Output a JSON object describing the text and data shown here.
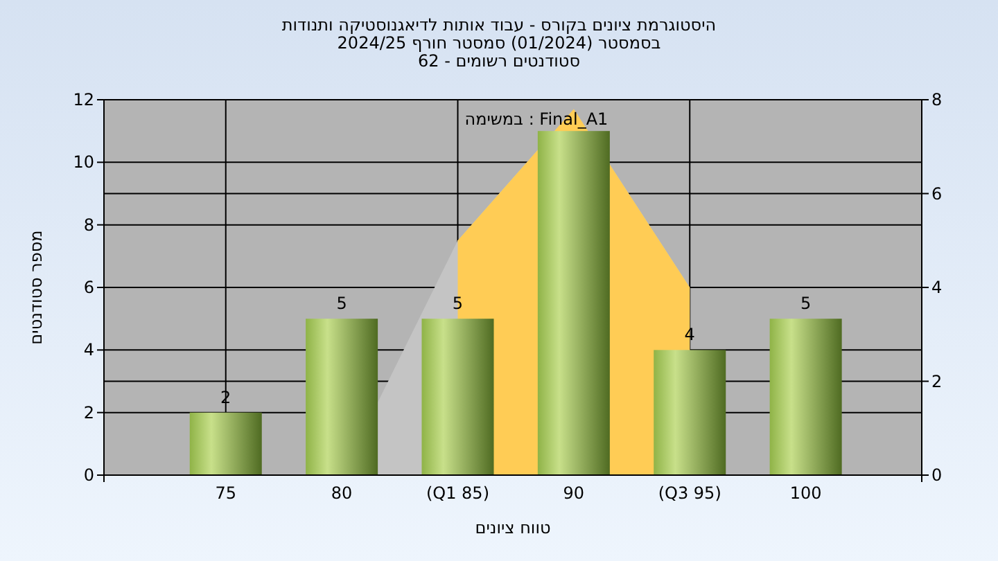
{
  "chart_data": {
    "type": "bar",
    "title": "היסטוגרמת ציונים בקורס - עבוד אותות לדיאגנוסטיקה ותנודות\nבסמסטר  (01/2024)  סמסטר חורף 2024/25",
    "subtitle": "סטודנטים רשומים - 62",
    "xlabel": "טווח ציונים",
    "ylabel": "מספר סטודנטים",
    "categories": [
      "75",
      "80",
      "(Q1 85)",
      "90",
      "(Q3 95)",
      "100"
    ],
    "series": [
      {
        "type": "area",
        "axis": "y2",
        "color": "#c4c4c4",
        "values": [
          null,
          0,
          5,
          7.8,
          4,
          null
        ]
      },
      {
        "type": "area",
        "axis": "y2",
        "color": "#ffcc55",
        "values": [
          null,
          null,
          5,
          7.8,
          4,
          null
        ]
      },
      {
        "color": "#8fb347",
        "values": [
          2,
          5,
          5,
          11,
          4,
          5
        ],
        "value_labels": [
          "2",
          "5",
          "5",
          null,
          "4",
          "5"
        ]
      }
    ],
    "ylim": [
      0,
      12
    ],
    "yticks": [
      0,
      2,
      4,
      6,
      8,
      10,
      12
    ],
    "y2lim": [
      0,
      8
    ],
    "y2ticks": [
      0,
      2,
      4,
      6,
      8
    ],
    "grid": true,
    "annotations": [
      "Final_A1 : במשימה"
    ]
  }
}
